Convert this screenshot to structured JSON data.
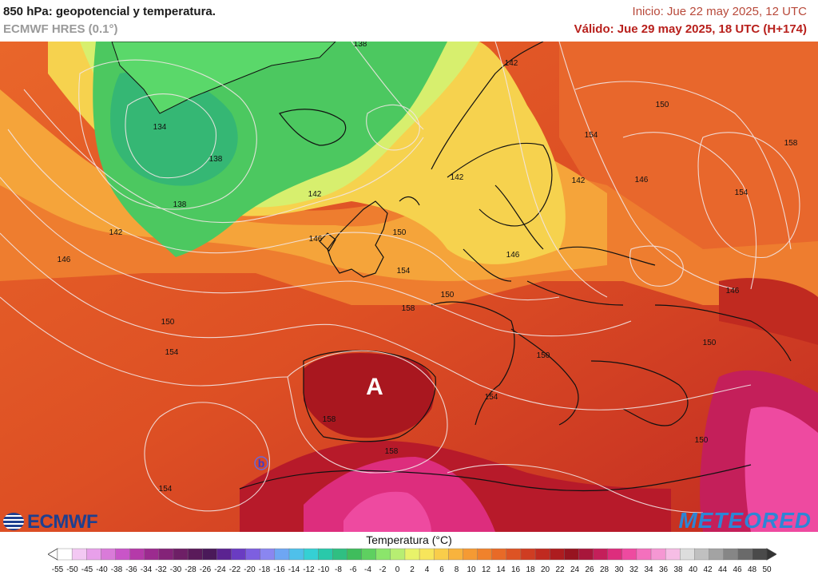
{
  "header": {
    "title": "850 hPa: geopotencial y temperatura.",
    "model": "ECMWF HRES (0.1°)",
    "init": "Inicio: Jue 22 may 2025, 12 UTC",
    "valid": "Válido: Jue 29 may 2025, 18 UTC (H+174)"
  },
  "map": {
    "high_label": "A",
    "low_label": "b",
    "contour_labels": [
      "138",
      "134",
      "138",
      "142",
      "146",
      "142",
      "146",
      "150",
      "154",
      "158",
      "138",
      "142",
      "150",
      "154",
      "158",
      "150",
      "142",
      "146",
      "150",
      "154",
      "142",
      "146",
      "150",
      "154",
      "146",
      "150",
      "154",
      "158",
      "154",
      "158",
      "150"
    ]
  },
  "logos": {
    "ecmwf": "ECMWF",
    "meteored": "METEORED"
  },
  "legend": {
    "title": "Temperatura (°C)",
    "ticks": [
      "-55",
      "-50",
      "-45",
      "-40",
      "-38",
      "-36",
      "-34",
      "-32",
      "-30",
      "-28",
      "-26",
      "-24",
      "-22",
      "-20",
      "-18",
      "-16",
      "-14",
      "-12",
      "-10",
      "-8",
      "-6",
      "-4",
      "-2",
      "0",
      "2",
      "4",
      "6",
      "8",
      "10",
      "12",
      "14",
      "16",
      "18",
      "20",
      "22",
      "24",
      "26",
      "28",
      "30",
      "32",
      "34",
      "36",
      "38",
      "40",
      "42",
      "44",
      "46",
      "48",
      "50"
    ],
    "colors": [
      "#ffffff",
      "#f3c8f3",
      "#e8a0ea",
      "#d97bd9",
      "#c955c8",
      "#b53aa9",
      "#9c2b8f",
      "#842378",
      "#6e1f66",
      "#5a1a5a",
      "#4a1959",
      "#5b2391",
      "#6a3cc2",
      "#7d5fe0",
      "#8a86f0",
      "#6ea6f3",
      "#4fc0ea",
      "#35d0d4",
      "#29c9aa",
      "#2fbf82",
      "#3fbd5c",
      "#5ed060",
      "#8be56b",
      "#b7ee72",
      "#e8f36a",
      "#f7e55b",
      "#f9cd4a",
      "#f8b33d",
      "#f59a33",
      "#f0822c",
      "#e86a27",
      "#dd5324",
      "#cf3d22",
      "#c02a20",
      "#ad1c1f",
      "#971420",
      "#a8163b",
      "#c41f5a",
      "#dd2d7d",
      "#ee4aa0",
      "#f470bd",
      "#f597d3",
      "#f6bde5",
      "#dddddd",
      "#c0c0c0",
      "#a3a3a3",
      "#868686",
      "#6a6a6a",
      "#4a4a4a"
    ]
  }
}
